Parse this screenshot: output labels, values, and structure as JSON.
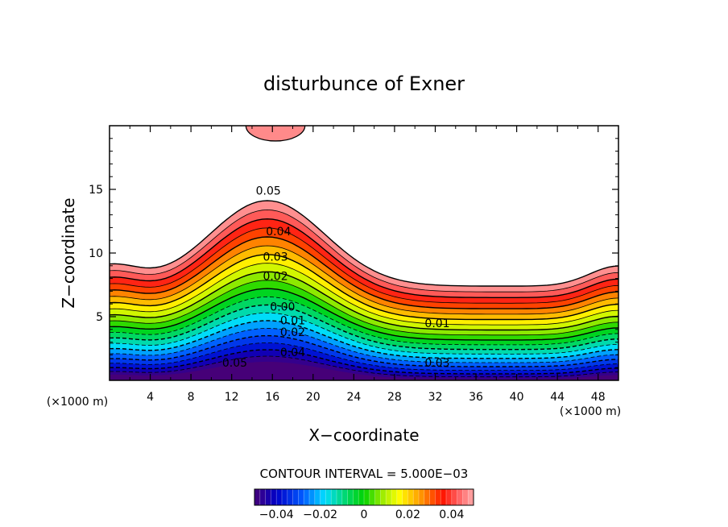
{
  "chart_data": {
    "type": "contour",
    "title": "disturbunce of Exner",
    "xlabel": "X−coordinate",
    "ylabel": "Z−coordinate",
    "x_unit_left": "(×1000 m)",
    "x_unit_right": "(×1000 m)",
    "xlim": [
      0,
      50
    ],
    "ylim": [
      0,
      20
    ],
    "xticks": [
      4,
      8,
      12,
      16,
      20,
      24,
      28,
      32,
      36,
      40,
      44,
      48
    ],
    "yticks": [
      5,
      10,
      15
    ],
    "contour_interval_text": "CONTOUR INTERVAL = 5.000E−03",
    "contour_interval": 0.005,
    "level_min": -0.05,
    "level_max": 0.05,
    "contour_labels": [
      {
        "text": "0.05",
        "x": 15.6,
        "z": 14.9
      },
      {
        "text": "0.04",
        "x": 16.6,
        "z": 11.7
      },
      {
        "text": "0.03",
        "x": 16.3,
        "z": 9.7
      },
      {
        "text": "0.02",
        "x": 16.3,
        "z": 8.2
      },
      {
        "text": "0.00",
        "x": 17.0,
        "z": 5.8
      },
      {
        "text": "0.01",
        "x": 18.0,
        "z": 4.7
      },
      {
        "text": "0.02",
        "x": 18.0,
        "z": 3.8
      },
      {
        "text": "0.04",
        "x": 18.0,
        "z": 2.2
      },
      {
        "text": "0.05",
        "x": 12.3,
        "z": 1.4
      },
      {
        "text": "0.01",
        "x": 32.2,
        "z": 4.5
      },
      {
        "text": "0.03",
        "x": 32.2,
        "z": 1.4
      }
    ],
    "colorbar": {
      "ticks": [
        {
          "label": "−0.04",
          "value": -0.04
        },
        {
          "label": "−0.02",
          "value": -0.02
        },
        {
          "label": "0",
          "value": 0
        },
        {
          "label": "0.02",
          "value": 0.02
        },
        {
          "label": "0.04",
          "value": 0.04
        }
      ]
    }
  }
}
